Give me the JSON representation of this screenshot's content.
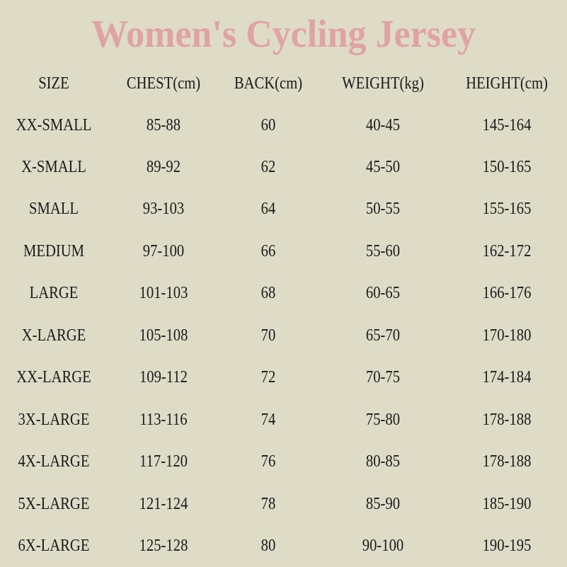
{
  "title": "Women's Cycling Jersey",
  "columns": [
    "SIZE",
    "CHEST(cm)",
    "BACK(cm)",
    "WEIGHT(kg)",
    "HEIGHT(cm)"
  ],
  "rows": [
    [
      "XX-SMALL",
      "85-88",
      "60",
      "40-45",
      "145-164"
    ],
    [
      "X-SMALL",
      "89-92",
      "62",
      "45-50",
      "150-165"
    ],
    [
      "SMALL",
      "93-103",
      "64",
      "50-55",
      "155-165"
    ],
    [
      "MEDIUM",
      "97-100",
      "66",
      "55-60",
      "162-172"
    ],
    [
      "LARGE",
      "101-103",
      "68",
      "60-65",
      "166-176"
    ],
    [
      "X-LARGE",
      "105-108",
      "70",
      "65-70",
      "170-180"
    ],
    [
      "XX-LARGE",
      "109-112",
      "72",
      "70-75",
      "174-184"
    ],
    [
      "3X-LARGE",
      "113-116",
      "74",
      "75-80",
      "178-188"
    ],
    [
      "4X-LARGE",
      "117-120",
      "76",
      "80-85",
      "178-188"
    ],
    [
      "5X-LARGE",
      "121-124",
      "78",
      "85-90",
      "185-190"
    ],
    [
      "6X-LARGE",
      "125-128",
      "80",
      "90-100",
      "190-195"
    ]
  ]
}
